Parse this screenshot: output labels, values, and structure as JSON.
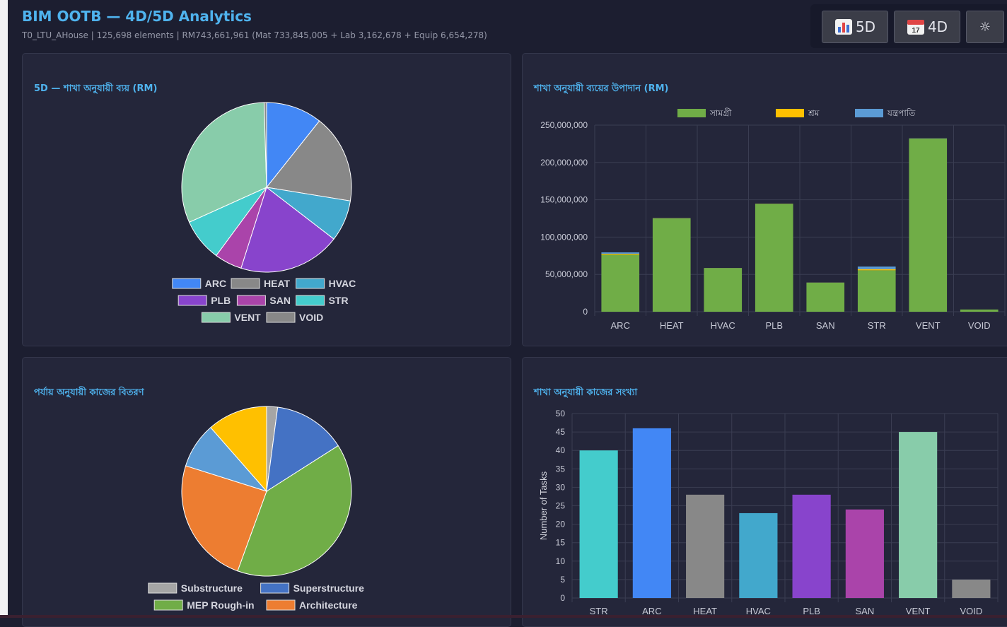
{
  "header": {
    "title": "BIM OOTB — 4D/5D Analytics",
    "subtitle": "T0_LTU_AHouse | 125,698 elements | RM743,661,961 (Mat 733,845,005 + Lab 3,162,678 + Equip 6,654,278)"
  },
  "toolbar": {
    "btn5d": "5D",
    "btn4d": "4D",
    "theme_glyph": "☼"
  },
  "icons": {
    "chart": "bar-chart-icon",
    "calendar": "calendar-icon",
    "theme": "sun-icon"
  },
  "colors": {
    "accent": "#4fb3ee",
    "background": "#1c1e30",
    "card": "#24263a"
  },
  "chart_data": [
    {
      "type": "pie",
      "title": "5D — শাখা অনুযায়ী ব্যয় (RM)",
      "labels": [
        "ARC",
        "HEAT",
        "HVAC",
        "PLB",
        "SAN",
        "STR",
        "VENT",
        "VOID"
      ],
      "values": [
        79500000,
        125500000,
        58500000,
        144500000,
        39000000,
        60500000,
        232500000,
        3500000
      ],
      "colors": [
        "#4287f5",
        "#888888",
        "#42a8cc",
        "#8844cc",
        "#aa44aa",
        "#44cccc",
        "#88ccaa",
        "#888888"
      ],
      "legend": "bottom"
    },
    {
      "type": "bar",
      "stacked": true,
      "title": "শাখা অনুযায়ী ব্যয়ের উপাদান (RM)",
      "categories": [
        "ARC",
        "HEAT",
        "HVAC",
        "PLB",
        "SAN",
        "STR",
        "VENT",
        "VOID"
      ],
      "series": [
        {
          "name": "সামগ্রী",
          "color": "#70ad47",
          "values": [
            76500000,
            125000000,
            58500000,
            144500000,
            39000000,
            55500000,
            232000000,
            3000000
          ]
        },
        {
          "name": "শ্রম",
          "color": "#ffc000",
          "values": [
            1200000,
            300000,
            100000,
            200000,
            100000,
            1500000,
            100000,
            0
          ]
        },
        {
          "name": "যন্ত্রপাতি",
          "color": "#5b9bd5",
          "values": [
            1800000,
            200000,
            100000,
            100000,
            100000,
            3500000,
            200000,
            0
          ]
        }
      ],
      "yticks": [
        "0",
        "50,000,000",
        "100,000,000",
        "150,000,000",
        "200,000,000",
        "250,000,000"
      ],
      "ylim": [
        0,
        250000000
      ],
      "legend": "top",
      "grid": true
    },
    {
      "type": "pie",
      "title": "পর্যায় অনুযায়ী কাজের বিতরণ",
      "labels": [
        "Substructure",
        "Superstructure",
        "MEP Rough-in",
        "Architecture",
        "",
        ""
      ],
      "values": [
        6,
        40,
        114,
        70,
        25,
        33
      ],
      "colors": [
        "#a5a5a5",
        "#4472c4",
        "#70ad47",
        "#ed7d31",
        "#5b9bd5",
        "#ffc000"
      ],
      "legend": "bottom"
    },
    {
      "type": "bar",
      "title": "শাখা অনুযায়ী কাজের সংখ্যা",
      "categories": [
        "STR",
        "ARC",
        "HEAT",
        "HVAC",
        "PLB",
        "SAN",
        "VENT",
        "VOID"
      ],
      "values": [
        40,
        46,
        28,
        23,
        28,
        24,
        45,
        5
      ],
      "colors": [
        "#44cccc",
        "#4287f5",
        "#888888",
        "#42a8cc",
        "#8844cc",
        "#aa44aa",
        "#88ccaa",
        "#888888"
      ],
      "ylabel": "Number of Tasks",
      "yticks": [
        "0",
        "5",
        "10",
        "15",
        "20",
        "25",
        "30",
        "35",
        "40",
        "45",
        "50"
      ],
      "ylim": [
        0,
        50
      ],
      "grid": true
    }
  ]
}
